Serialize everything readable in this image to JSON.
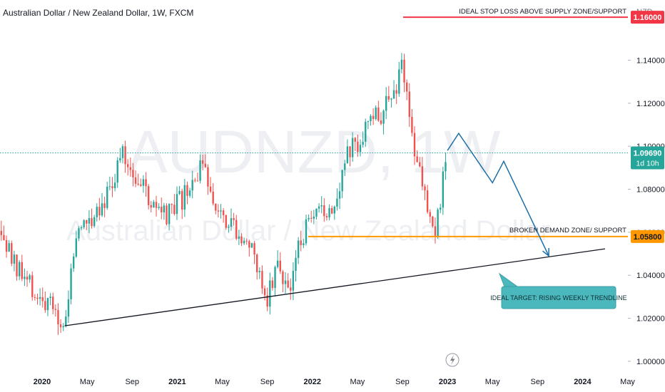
{
  "header": {
    "title": "Australian Dollar / New Zealand Dollar, 1W, FXCM",
    "currency": "NZD"
  },
  "watermark": {
    "symbol": "AUDNZD, 1W",
    "name": "Australian Dollar / New Zealand Dollar"
  },
  "colors": {
    "up": "#26a69a",
    "down": "#ef5350",
    "stop": "#f23645",
    "demand": "#ff9800",
    "projection": "#1e6fa8",
    "callout": "#4bb8be",
    "trend": "#131722"
  },
  "chart_data": {
    "type": "candlestick",
    "x_ticks": [
      "2020",
      "May",
      "Sep",
      "2021",
      "May",
      "Sep",
      "2022",
      "May",
      "Sep",
      "2023",
      "May",
      "Sep",
      "2024",
      "May"
    ],
    "y_ticks": [
      "1.14000",
      "1.12000",
      "1.10000",
      "1.08000",
      "1.06000",
      "1.04000",
      "1.02000",
      "1.00000"
    ],
    "ylim": [
      0.995,
      1.168
    ],
    "series": [
      {
        "date": "2019-08",
        "close": 1.073
      },
      {
        "date": "2019-11",
        "close": 1.04
      },
      {
        "date": "2020-03",
        "close": 1.017
      },
      {
        "date": "2020-04",
        "close": 1.058
      },
      {
        "date": "2020-07",
        "close": 1.08
      },
      {
        "date": "2020-08",
        "close": 1.096
      },
      {
        "date": "2020-09",
        "close": 1.09
      },
      {
        "date": "2020-11",
        "close": 1.07
      },
      {
        "date": "2020-12",
        "close": 1.066
      },
      {
        "date": "2021-02",
        "close": 1.078
      },
      {
        "date": "2021-03",
        "close": 1.09
      },
      {
        "date": "2021-05",
        "close": 1.07
      },
      {
        "date": "2021-07",
        "close": 1.058
      },
      {
        "date": "2021-09",
        "close": 1.031
      },
      {
        "date": "2021-10",
        "close": 1.046
      },
      {
        "date": "2021-11",
        "close": 1.032
      },
      {
        "date": "2021-12",
        "close": 1.058
      },
      {
        "date": "2022-03",
        "close": 1.075
      },
      {
        "date": "2022-04",
        "close": 1.095
      },
      {
        "date": "2022-06",
        "close": 1.11
      },
      {
        "date": "2022-08",
        "close": 1.12
      },
      {
        "date": "2022-09",
        "close": 1.14
      },
      {
        "date": "2022-10",
        "close": 1.1
      },
      {
        "date": "2022-11",
        "close": 1.078
      },
      {
        "date": "2022-12",
        "close": 1.062
      },
      {
        "date": "2023-01",
        "close": 1.097
      }
    ],
    "price_lines": [
      {
        "label": "IDEAL STOP LOSS ABOVE SUPPLY ZONE/SUPPORT",
        "price": "1.16000",
        "value": 1.16
      },
      {
        "label": "BROKEN DEMAND ZONE/ SUPPORT",
        "price": "1.05800",
        "value": 1.058
      }
    ],
    "current_price": {
      "value": 1.0969,
      "price": "1.09690",
      "countdown": "1d 10h"
    },
    "trendline": {
      "from": [
        "2020-03",
        1.0165
      ],
      "to": [
        "2024-03",
        1.0523
      ]
    },
    "projection": [
      [
        "2023-01",
        1.098
      ],
      [
        "2023-02",
        1.106
      ],
      [
        "2023-05",
        1.083
      ],
      [
        "2023-06",
        1.093
      ],
      [
        "2023-10",
        1.049
      ]
    ],
    "callout": "IDEAL TARGET: RISING WEEKLY TRENDLINE"
  }
}
